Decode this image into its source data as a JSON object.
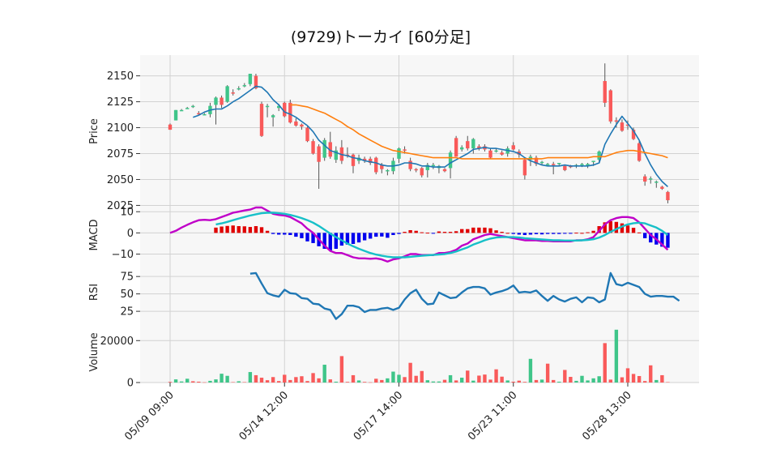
{
  "title": "(9729)トーカイ  [60分足]",
  "colors": {
    "up": "#3fc589",
    "down": "#f95a5a",
    "ma_short": "#1f77b4",
    "ma_long": "#ff7f0e",
    "macd_line": "#c000c8",
    "signal_line": "#17c0c8",
    "hist_pos": "#e00000",
    "hist_neg": "#0000ee",
    "rsi": "#1f77b4",
    "panel_bg": "#f7f7f7",
    "grid": "#d2d2d2"
  },
  "chart_data": {
    "type": "candlestick",
    "x_tick_labels": [
      "05/09 09:00",
      "05/14 12:00",
      "05/17 14:00",
      "05/23 11:00",
      "05/28 13:00"
    ],
    "x_tick_index": [
      0,
      20,
      40,
      60,
      80
    ],
    "price": {
      "ylabel": "Price",
      "ylim": [
        2023,
        2170
      ],
      "yticks": [
        2025,
        2050,
        2075,
        2100,
        2125,
        2150
      ],
      "ohlc": [
        [
          2103,
          2104,
          2098,
          2098
        ],
        [
          2107,
          2117,
          2107,
          2117
        ],
        [
          2117,
          2118,
          2116,
          2117
        ],
        [
          2119,
          2120,
          2118,
          2119
        ],
        [
          2121,
          2122,
          2119,
          2121
        ],
        [
          2114,
          2116,
          2112,
          2113
        ],
        [
          2113,
          2114,
          2112,
          2113
        ],
        [
          2113,
          2124,
          2110,
          2121
        ],
        [
          2122,
          2130,
          2103,
          2129
        ],
        [
          2129,
          2131,
          2119,
          2122
        ],
        [
          2125,
          2141,
          2124,
          2140
        ],
        [
          2134,
          2137,
          2131,
          2133
        ],
        [
          2137,
          2140,
          2136,
          2138
        ],
        [
          2141,
          2143,
          2139,
          2141
        ],
        [
          2142,
          2152,
          2140,
          2152
        ],
        [
          2150,
          2152,
          2137,
          2138
        ],
        [
          2123,
          2125,
          2091,
          2092
        ],
        [
          2121,
          2123,
          2110,
          2121
        ],
        [
          2110,
          2113,
          2101,
          2112
        ],
        [
          2119,
          2123,
          2116,
          2121
        ],
        [
          2124,
          2125,
          2110,
          2111
        ],
        [
          2124,
          2127,
          2104,
          2105
        ],
        [
          2106,
          2109,
          2101,
          2102
        ],
        [
          2103,
          2104,
          2098,
          2101
        ],
        [
          2100,
          2101,
          2086,
          2087
        ],
        [
          2087,
          2089,
          2074,
          2075
        ],
        [
          2082,
          2084,
          2041,
          2067
        ],
        [
          2071,
          2090,
          2068,
          2088
        ],
        [
          2086,
          2096,
          2070,
          2072
        ],
        [
          2069,
          2082,
          2066,
          2078
        ],
        [
          2081,
          2088,
          2065,
          2068
        ],
        [
          2074,
          2081,
          2071,
          2073
        ],
        [
          2074,
          2075,
          2056,
          2063
        ],
        [
          2068,
          2074,
          2065,
          2071
        ],
        [
          2070,
          2072,
          2066,
          2068
        ],
        [
          2070,
          2072,
          2064,
          2066
        ],
        [
          2071,
          2072,
          2055,
          2057
        ],
        [
          2064,
          2066,
          2056,
          2060
        ],
        [
          2058,
          2060,
          2054,
          2059
        ],
        [
          2058,
          2071,
          2055,
          2068
        ],
        [
          2070,
          2081,
          2066,
          2080
        ],
        [
          2079,
          2082,
          2075,
          2078
        ],
        [
          2068,
          2071,
          2058,
          2060
        ],
        [
          2060,
          2061,
          2057,
          2059
        ],
        [
          2061,
          2062,
          2052,
          2054
        ],
        [
          2059,
          2066,
          2052,
          2064
        ],
        [
          2063,
          2066,
          2060,
          2064
        ],
        [
          2061,
          2064,
          2056,
          2063
        ],
        [
          2060,
          2061,
          2057,
          2058
        ],
        [
          2061,
          2078,
          2051,
          2076
        ],
        [
          2090,
          2092,
          2072,
          2072
        ],
        [
          2079,
          2083,
          2077,
          2081
        ],
        [
          2087,
          2092,
          2078,
          2080
        ],
        [
          2080,
          2090,
          2075,
          2089
        ],
        [
          2082,
          2084,
          2078,
          2080
        ],
        [
          2082,
          2084,
          2077,
          2079
        ],
        [
          2078,
          2080,
          2070,
          2071
        ],
        [
          2078,
          2080,
          2076,
          2078
        ],
        [
          2076,
          2078,
          2073,
          2074
        ],
        [
          2075,
          2082,
          2072,
          2080
        ],
        [
          2083,
          2086,
          2078,
          2079
        ],
        [
          2077,
          2079,
          2071,
          2074
        ],
        [
          2069,
          2071,
          2050,
          2054
        ],
        [
          2069,
          2074,
          2063,
          2072
        ],
        [
          2071,
          2073,
          2063,
          2065
        ],
        [
          2066,
          2068,
          2064,
          2067
        ],
        [
          2065,
          2066,
          2063,
          2065
        ],
        [
          2065,
          2067,
          2055,
          2064
        ],
        [
          2065,
          2066,
          2063,
          2066
        ],
        [
          2063,
          2064,
          2058,
          2059
        ],
        [
          2063,
          2064,
          2061,
          2062
        ],
        [
          2064,
          2065,
          2061,
          2064
        ],
        [
          2064,
          2066,
          2062,
          2065
        ],
        [
          2063,
          2066,
          2061,
          2065
        ],
        [
          2067,
          2068,
          2063,
          2068
        ],
        [
          2069,
          2078,
          2067,
          2077
        ],
        [
          2145,
          2162,
          2120,
          2124
        ],
        [
          2136,
          2137,
          2104,
          2106
        ],
        [
          2107,
          2110,
          2100,
          2106
        ],
        [
          2105,
          2108,
          2096,
          2097
        ],
        [
          2103,
          2107,
          2098,
          2102
        ],
        [
          2098,
          2100,
          2088,
          2089
        ],
        [
          2085,
          2087,
          2067,
          2068
        ],
        [
          2053,
          2055,
          2044,
          2048
        ],
        [
          2050,
          2053,
          2046,
          2051
        ],
        [
          2047,
          2049,
          2042,
          2048
        ],
        [
          2043,
          2044,
          2040,
          2041
        ],
        [
          2038,
          2039,
          2027,
          2030
        ]
      ],
      "ma_short": [
        null,
        null,
        null,
        null,
        2110,
        2112,
        2115,
        2117,
        2118,
        2118,
        2121,
        2125,
        2128,
        2132,
        2136,
        2140,
        2139,
        2134,
        2127,
        2122,
        2115,
        2113,
        2110,
        2106,
        2102,
        2096,
        2088,
        2083,
        2078,
        2076,
        2074,
        2073,
        2071,
        2070,
        2068,
        2067,
        2066,
        2064,
        2063,
        2063,
        2064,
        2066,
        2066,
        2065,
        2063,
        2063,
        2062,
        2062,
        2062,
        2066,
        2069,
        2072,
        2075,
        2079,
        2080,
        2081,
        2080,
        2080,
        2079,
        2078,
        2077,
        2075,
        2071,
        2068,
        2066,
        2064,
        2063,
        2063,
        2063,
        2064,
        2063,
        2063,
        2063,
        2063,
        2064,
        2066,
        2084,
        2094,
        2103,
        2111,
        2104,
        2097,
        2088,
        2075,
        2064,
        2055,
        2048,
        2043
      ],
      "ma_long": [
        null,
        null,
        null,
        null,
        null,
        null,
        null,
        null,
        null,
        null,
        null,
        null,
        null,
        null,
        null,
        null,
        null,
        null,
        null,
        null,
        null,
        2122,
        2122,
        2121,
        2120,
        2118,
        2116,
        2114,
        2111,
        2108,
        2105,
        2101,
        2098,
        2094,
        2091,
        2088,
        2085,
        2082,
        2080,
        2078,
        2077,
        2076,
        2075,
        2074,
        2073,
        2072,
        2071,
        2071,
        2071,
        2071,
        2071,
        2070,
        2070,
        2070,
        2070,
        2070,
        2070,
        2070,
        2070,
        2070,
        2070,
        2070,
        2070,
        2070,
        2070,
        2070,
        2071,
        2071,
        2071,
        2071,
        2071,
        2071,
        2071,
        2071,
        2072,
        2072,
        2072,
        2074,
        2076,
        2077,
        2078,
        2078,
        2077,
        2076,
        2075,
        2074,
        2073,
        2071
      ]
    },
    "macd": {
      "ylabel": "MACD",
      "ylim": [
        -14,
        12
      ],
      "yticks": [
        -10,
        0,
        10
      ],
      "macd": [
        0,
        1,
        2.5,
        3.8,
        5,
        6,
        6.2,
        6,
        6.5,
        7.5,
        8.5,
        9.5,
        10,
        10.6,
        11,
        12,
        12,
        10.5,
        9,
        8.5,
        8.2,
        7.5,
        6,
        4.5,
        2,
        0,
        -3,
        -6,
        -8.5,
        -9.5,
        -9.5,
        -10.5,
        -11.5,
        -12,
        -12,
        -12.2,
        -12,
        -12.5,
        -13.5,
        -12.5,
        -12,
        -11,
        -10,
        -10,
        -10.5,
        -10.5,
        -10.5,
        -9.5,
        -9.5,
        -9,
        -8,
        -6,
        -5,
        -3,
        -2,
        -1,
        -0.5,
        -1,
        -1.5,
        -2,
        -2.5,
        -3,
        -3.5,
        -3.5,
        -3.5,
        -3.8,
        -3.8,
        -4,
        -4,
        -4,
        -4,
        -3.5,
        -3.5,
        -3,
        -2,
        1,
        4,
        6,
        7,
        7.5,
        7.5,
        7,
        5,
        2,
        -1,
        -3,
        -5.5,
        -8
      ],
      "signal": [
        null,
        null,
        null,
        null,
        null,
        null,
        null,
        null,
        4,
        4.5,
        5.2,
        6,
        6.8,
        7.5,
        8.2,
        8.8,
        9.3,
        9.5,
        9.5,
        9.3,
        9,
        8.5,
        7.8,
        7,
        6,
        4.8,
        3.3,
        1.5,
        -0.3,
        -2,
        -3.5,
        -5,
        -6.3,
        -7.5,
        -8.5,
        -9.5,
        -10.2,
        -10.8,
        -11.2,
        -11.5,
        -11.5,
        -11.5,
        -11.3,
        -11,
        -10.8,
        -10.6,
        -10.4,
        -10.2,
        -10,
        -9.5,
        -8.8,
        -7.8,
        -6.8,
        -5.5,
        -4.5,
        -3.5,
        -2.7,
        -2.2,
        -2,
        -2,
        -2,
        -2.2,
        -2.5,
        -2.7,
        -2.9,
        -3.1,
        -3.3,
        -3.5,
        -3.5,
        -3.6,
        -3.6,
        -3.6,
        -3.5,
        -3.3,
        -3,
        -2.2,
        -1,
        0.5,
        1.8,
        3,
        4,
        4.6,
        4.8,
        4.5,
        3.5,
        2.5,
        1,
        -1
      ]
    },
    "rsi": {
      "ylabel": "RSI",
      "ylim": [
        10,
        95
      ],
      "yticks": [
        25,
        50,
        75
      ],
      "values": [
        null,
        null,
        null,
        null,
        null,
        null,
        null,
        null,
        null,
        null,
        null,
        null,
        null,
        null,
        79,
        80,
        65,
        51,
        48,
        46,
        56,
        51,
        50,
        44,
        43,
        36,
        35,
        29,
        27,
        14,
        21,
        33,
        33,
        31,
        24,
        27,
        27,
        29,
        30,
        27,
        30,
        42,
        51,
        56,
        43,
        35,
        36,
        52,
        48,
        44,
        45,
        52,
        58,
        60,
        60,
        58,
        49,
        52,
        54,
        57,
        62,
        52,
        53,
        52,
        55,
        47,
        40,
        47,
        42,
        39,
        43,
        45,
        38,
        45,
        44,
        38,
        42,
        80,
        64,
        62,
        66,
        63,
        60,
        50,
        46,
        47,
        47,
        46,
        46,
        40
      ]
    },
    "volume": {
      "ylabel": "Volume",
      "ylim": [
        0,
        29000
      ],
      "yticks": [
        0,
        20000
      ],
      "values": [
        300,
        1500,
        500,
        1800,
        600,
        400,
        100,
        800,
        1500,
        4200,
        3200,
        200,
        600,
        200,
        5000,
        3500,
        2300,
        1100,
        2600,
        700,
        3700,
        1200,
        2600,
        3000,
        700,
        4500,
        2000,
        8500,
        1500,
        400,
        12600,
        300,
        3500,
        1000,
        300,
        100,
        1800,
        1200,
        2000,
        5200,
        3700,
        2600,
        9400,
        3200,
        5500,
        1100,
        500,
        500,
        1300,
        3500,
        1000,
        2300,
        5700,
        900,
        3300,
        3800,
        1400,
        6300,
        2800,
        1000,
        400,
        900,
        300,
        11300,
        1200,
        1400,
        9000,
        1200,
        400,
        6000,
        2700,
        800,
        3200,
        1000,
        2000,
        3000,
        18800,
        1400,
        25200,
        2500,
        6800,
        4100,
        3100,
        700,
        8200,
        1200,
        3500,
        200
      ],
      "up": [
        false,
        true,
        true,
        true,
        false,
        false,
        false,
        true,
        true,
        true,
        true,
        false,
        true,
        false,
        true,
        false,
        false,
        false,
        false,
        false,
        false,
        false,
        false,
        false,
        false,
        false,
        false,
        true,
        false,
        true,
        false,
        false,
        false,
        true,
        false,
        false,
        false,
        false,
        true,
        true,
        true,
        false,
        false,
        false,
        false,
        true,
        true,
        true,
        false,
        true,
        false,
        true,
        false,
        true,
        false,
        false,
        false,
        false,
        false,
        true,
        false,
        false,
        false,
        true,
        false,
        true,
        false,
        false,
        true,
        false,
        false,
        true,
        true,
        true,
        true,
        true,
        false,
        false,
        true,
        false,
        false,
        false,
        false,
        false,
        false,
        true,
        false,
        false
      ]
    }
  }
}
